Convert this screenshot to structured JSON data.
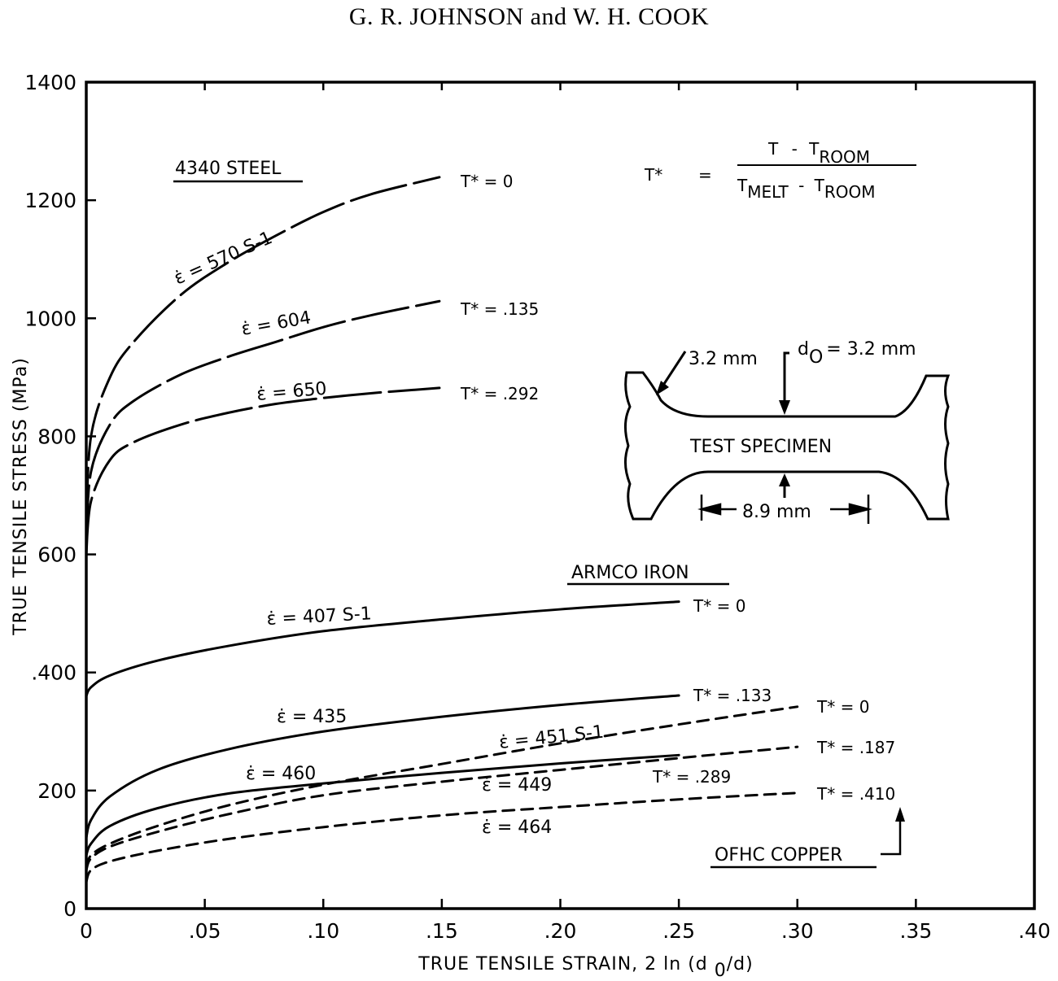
{
  "header": {
    "authors": "G. R. JOHNSON and W. H. COOK"
  },
  "colors": {
    "ink": "#000000",
    "background": "#ffffff"
  },
  "chart_data": {
    "type": "line",
    "title": "",
    "xlabel": "TRUE TENSILE STRAIN, 2 ln (d0/d)",
    "ylabel": "TRUE TENSILE STRESS (MPa)",
    "xlim": [
      0,
      0.4
    ],
    "ylim": [
      0,
      1400
    ],
    "x_ticks": [
      0,
      0.05,
      0.1,
      0.15,
      0.2,
      0.25,
      0.3,
      0.35,
      0.4
    ],
    "x_tick_labels": [
      "0",
      ".05",
      ".10",
      ".15",
      ".20",
      ".25",
      ".30",
      ".35",
      ".40"
    ],
    "y_ticks": [
      0,
      200,
      400,
      600,
      800,
      1000,
      1200,
      1400
    ],
    "y_tick_labels": [
      "0",
      "200",
      ".400",
      "600",
      "800",
      "1000",
      "1200",
      "1400"
    ],
    "grid": false,
    "groups": [
      {
        "material": "4340 STEEL",
        "line_style": "long-dash",
        "series": [
          {
            "name": "T* = 0",
            "strain_rate": "570 S-1",
            "x": [
              0,
              0.002,
              0.01,
              0.02,
              0.04,
              0.06,
              0.08,
              0.1,
              0.12,
              0.149
            ],
            "y": [
              650,
              800,
              900,
              960,
              1040,
              1095,
              1140,
              1180,
              1210,
              1239
            ]
          },
          {
            "name": "T* = .135",
            "strain_rate": "604",
            "x": [
              0,
              0.002,
              0.01,
              0.02,
              0.04,
              0.06,
              0.08,
              0.1,
              0.12,
              0.149
            ],
            "y": [
              620,
              740,
              820,
              860,
              905,
              935,
              960,
              985,
              1005,
              1029
            ]
          },
          {
            "name": "T* = .292",
            "strain_rate": "650",
            "x": [
              0,
              0.002,
              0.01,
              0.02,
              0.04,
              0.06,
              0.08,
              0.1,
              0.12,
              0.149
            ],
            "y": [
              600,
              690,
              760,
              790,
              820,
              840,
              855,
              865,
              873,
              882
            ]
          }
        ]
      },
      {
        "material": "ARMCO IRON",
        "line_style": "solid",
        "series": [
          {
            "name": "T* = 0",
            "strain_rate": "407 S-1",
            "x": [
              0,
              0.002,
              0.01,
              0.03,
              0.06,
              0.1,
              0.15,
              0.2,
              0.25
            ],
            "y": [
              360,
              375,
              395,
              420,
              445,
              470,
              490,
              507,
              520
            ]
          },
          {
            "name": "T* = .133",
            "strain_rate": "435",
            "x": [
              0,
              0.002,
              0.01,
              0.03,
              0.06,
              0.1,
              0.15,
              0.2,
              0.25
            ],
            "y": [
              120,
              150,
              190,
              235,
              270,
              300,
              325,
              345,
              361
            ]
          },
          {
            "name": "T* = .289",
            "strain_rate": "460",
            "x": [
              0,
              0.002,
              0.01,
              0.03,
              0.06,
              0.1,
              0.15,
              0.2,
              0.25
            ],
            "y": [
              90,
              110,
              140,
              170,
              195,
              212,
              230,
              246,
              260
            ]
          }
        ]
      },
      {
        "material": "OFHC COPPER",
        "line_style": "short-dash",
        "series": [
          {
            "name": "T* = 0",
            "strain_rate": "451 S-1",
            "x": [
              0,
              0.002,
              0.01,
              0.03,
              0.06,
              0.1,
              0.15,
              0.2,
              0.25,
              0.3
            ],
            "y": [
              70,
              90,
              110,
              140,
              175,
              210,
              245,
              280,
              312,
              342
            ]
          },
          {
            "name": "T* = .187",
            "strain_rate": "449",
            "x": [
              0,
              0.002,
              0.01,
              0.03,
              0.06,
              0.1,
              0.15,
              0.2,
              0.25,
              0.3
            ],
            "y": [
              65,
              85,
              105,
              130,
              160,
              192,
              215,
              235,
              255,
              274
            ]
          },
          {
            "name": "T* = .410",
            "strain_rate": "464",
            "x": [
              0,
              0.002,
              0.01,
              0.03,
              0.06,
              0.1,
              0.15,
              0.2,
              0.25,
              0.3
            ],
            "y": [
              45,
              65,
              80,
              98,
              118,
              138,
              158,
              172,
              185,
              196
            ]
          }
        ]
      }
    ],
    "annotations": {
      "formula": {
        "lhs": "T*",
        "eq": "=",
        "num_a": "T",
        "num_op": "-",
        "num_b": "T",
        "num_b_sub": "ROOM",
        "den_a": "T",
        "den_a_sub": "MELT",
        "den_op": "-",
        "den_b": "T",
        "den_b_sub": "ROOM"
      },
      "specimen": {
        "title": "TEST SPECIMEN",
        "radius": "3.2 mm",
        "diameter_label": "d",
        "diameter_sub": "O",
        "diameter_value": "= 3.2 mm",
        "gauge_length": "8.9 mm"
      },
      "steel_label": "4340 STEEL",
      "iron_label": "ARMCO IRON",
      "copper_label": "OFHC COPPER",
      "steel_rates": [
        "ε̇ = 570 S-1",
        "ε̇ = 604",
        "ε̇ = 650"
      ],
      "steel_temps": [
        "T* = 0",
        "T* = .135",
        "T* = .292"
      ],
      "iron_rates": [
        "ε̇ = 407 S-1",
        "ε̇ = 435",
        "ε̇ = 460"
      ],
      "iron_temps": [
        "T* = 0",
        "T* = .133",
        "T* = .289"
      ],
      "copper_rates": [
        "ε̇ = 451 S-1",
        "ε̇ = 449",
        "ε̇ = 464"
      ],
      "copper_temps": [
        "T* = 0",
        "T* = .187",
        "T* = .410"
      ]
    }
  }
}
